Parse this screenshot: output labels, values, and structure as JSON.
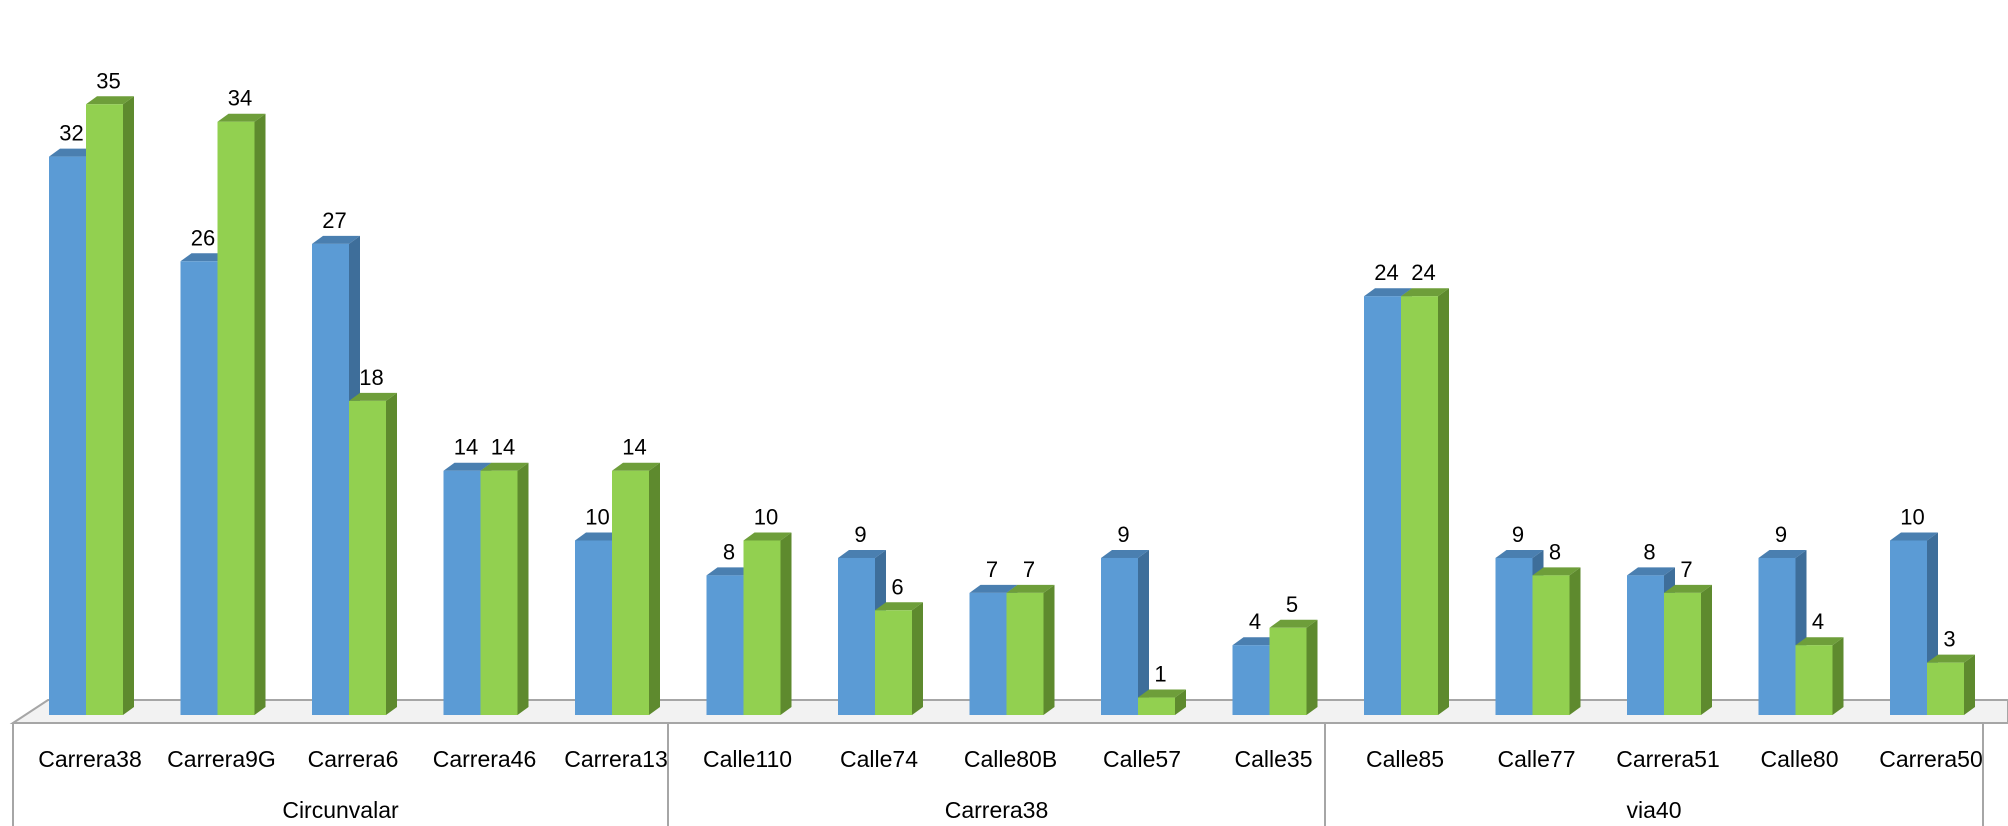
{
  "chart_data": {
    "type": "bar",
    "style": "3d-clustered-column",
    "groups": [
      {
        "name": "Circunvalar",
        "categories": [
          "Carrera38",
          "Carrera9G",
          "Carrera6",
          "Carrera46",
          "Carrera13"
        ]
      },
      {
        "name": "Carrera38",
        "categories": [
          "Calle110",
          "Calle74",
          "Calle80B",
          "Calle57",
          "Calle35"
        ]
      },
      {
        "name": "via40",
        "categories": [
          "Calle85",
          "Calle77",
          "Carrera51",
          "Calle80",
          "Carrera50"
        ]
      }
    ],
    "categories": [
      "Carrera38",
      "Carrera9G",
      "Carrera6",
      "Carrera46",
      "Carrera13",
      "Calle110",
      "Calle74",
      "Calle80B",
      "Calle57",
      "Calle35",
      "Calle85",
      "Calle77",
      "Carrera51",
      "Calle80",
      "Carrera50"
    ],
    "series": [
      {
        "values": [
          32,
          26,
          27,
          14,
          10,
          8,
          9,
          7,
          9,
          4,
          24,
          9,
          8,
          9,
          10
        ],
        "color": "#5B9BD5",
        "side_color": "#3E6E9A",
        "top_color": "#4A7FB0"
      },
      {
        "values": [
          35,
          34,
          18,
          14,
          14,
          10,
          6,
          7,
          1,
          5,
          24,
          8,
          7,
          4,
          3
        ],
        "color": "#92D050",
        "side_color": "#5E8A2E",
        "top_color": "#6E9E3A"
      }
    ],
    "ylim": [
      0,
      35
    ],
    "grid": false,
    "legend": "none"
  }
}
